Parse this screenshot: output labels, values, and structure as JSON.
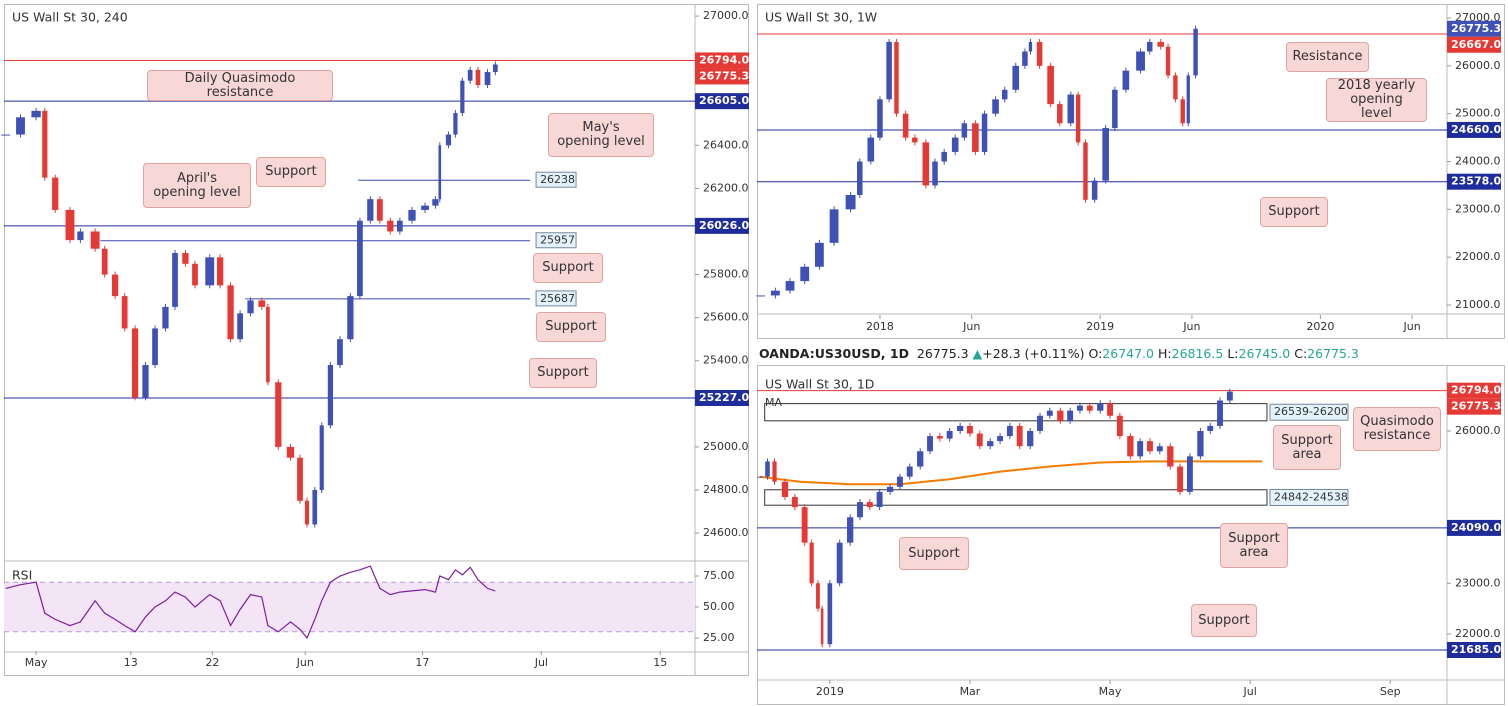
{
  "header": {
    "symbol": "OANDA:US30USD, 1D",
    "last": "26775.3",
    "arrow": "▲",
    "change": "+28.3",
    "change_pct": "(+0.11%)",
    "ohlc": [
      {
        "label": "O:",
        "value": "26747.0"
      },
      {
        "label": "H:",
        "value": "26816.5"
      },
      {
        "label": "L:",
        "value": "26745.0"
      },
      {
        "label": "C:",
        "value": "26775.3"
      }
    ]
  },
  "chart_data": [
    {
      "type": "candlestick",
      "title": "US Wall St 30, 240",
      "up_color": "#3f51b5",
      "down_color": "#e53935",
      "x": [
        -3.5,
        -1.8,
        0,
        1.0,
        2.2,
        3.9,
        5.1,
        6.8,
        7.9,
        9.1,
        10.2,
        11.4,
        12.6,
        13.7,
        14.9,
        16.0,
        17.2,
        18.3,
        20.0,
        21.2,
        22.4,
        23.5,
        24.7,
        26.0,
        26.7,
        27.9,
        29.3,
        30.4,
        31.2,
        32.1,
        32.9,
        33.9,
        35.0,
        36.2,
        37.3,
        38.5,
        39.6,
        40.8,
        41.9,
        43.3,
        44.8,
        46.0,
        46.5,
        47.5,
        48.3,
        49.1,
        50.0,
        50.9,
        52.0,
        52.9
      ],
      "values": [
        26450,
        26530,
        26560,
        26250,
        26100,
        25960,
        26000,
        25920,
        25800,
        25700,
        25550,
        25230,
        25380,
        25550,
        25650,
        25900,
        25850,
        25750,
        25880,
        25750,
        25500,
        25620,
        25680,
        25650,
        25300,
        25000,
        24950,
        24750,
        24640,
        24800,
        25100,
        25380,
        25500,
        25700,
        26050,
        26150,
        26050,
        26000,
        26050,
        26100,
        26120,
        26150,
        26400,
        26450,
        26550,
        26700,
        26750,
        26680,
        26740,
        26775.3
      ],
      "xlim": [
        -3.7,
        75.9
      ],
      "ylim": [
        24475,
        27056
      ],
      "xticks": [
        {
          "value": 0,
          "label": "May"
        },
        {
          "value": 10.9,
          "label": "13"
        },
        {
          "value": 20.3,
          "label": "22"
        },
        {
          "value": 31,
          "label": "Jun"
        },
        {
          "value": 44.5,
          "label": "17"
        },
        {
          "value": 58.2,
          "label": "Jul"
        },
        {
          "value": 71.9,
          "label": "15"
        }
      ],
      "yticks": [
        {
          "value": 27000,
          "label": "27000.0"
        },
        {
          "value": 26400,
          "label": "26400.0"
        },
        {
          "value": 26200,
          "label": "26200.0"
        },
        {
          "value": 25800,
          "label": "25800.0"
        },
        {
          "value": 25600,
          "label": "25600.0"
        },
        {
          "value": 25400,
          "label": "25400.0"
        },
        {
          "value": 25000,
          "label": "25000.0"
        },
        {
          "value": 24800,
          "label": "24800.0"
        },
        {
          "value": 24600,
          "label": "24600.0"
        }
      ],
      "levels": [
        {
          "value": 26794,
          "label": "26794.0",
          "color": "#e53935"
        },
        {
          "value": 26605,
          "label": "26605.0",
          "color": "#1f2d9c"
        },
        {
          "value": 26026,
          "label": "26026.0",
          "color": "#1f2d9c"
        },
        {
          "value": 25227,
          "label": "25227.0",
          "color": "#1f2d9c"
        }
      ],
      "last": {
        "value": 26775.3,
        "label": "26775.3",
        "color": "#e53935"
      },
      "segments": [
        {
          "value": 26238,
          "label": "26238",
          "start": 37.1,
          "end": 56.9
        },
        {
          "value": 25957,
          "label": "25957",
          "start": 7.4,
          "end": 56.9
        },
        {
          "value": 25687,
          "label": "25687",
          "start": 24.1,
          "end": 56.9
        }
      ],
      "annotations": [
        "Daily Quasimodo resistance",
        "May's opening level",
        "Support",
        "April's opening level",
        "Support",
        "Support",
        "Support"
      ]
    },
    {
      "type": "line",
      "title": "RSI",
      "color": "#7b1fa2",
      "band": [
        30,
        70
      ],
      "x": [
        -3.5,
        -1.8,
        0,
        1.0,
        2.2,
        3.9,
        5.1,
        6.8,
        7.9,
        9.1,
        10.2,
        11.4,
        12.6,
        13.7,
        14.9,
        16.0,
        17.2,
        18.3,
        20.0,
        21.2,
        22.4,
        23.5,
        24.7,
        26.0,
        26.7,
        27.9,
        29.3,
        30.4,
        31.2,
        32.1,
        32.9,
        33.9,
        35.0,
        36.2,
        37.3,
        38.5,
        39.6,
        40.8,
        41.9,
        43.3,
        44.8,
        46.0,
        46.5,
        47.5,
        48.3,
        49.1,
        50.0,
        50.9,
        52.0,
        52.9
      ],
      "values": [
        65,
        68,
        70,
        45,
        40,
        35,
        38,
        55,
        45,
        40,
        35,
        30,
        42,
        50,
        55,
        62,
        58,
        50,
        60,
        55,
        35,
        48,
        60,
        58,
        35,
        30,
        38,
        32,
        25,
        40,
        55,
        70,
        75,
        78,
        80,
        83,
        65,
        60,
        62,
        63,
        64,
        62,
        75,
        72,
        80,
        76,
        82,
        72,
        65,
        63
      ],
      "xlim": [
        -3.7,
        75.9
      ],
      "ylim": [
        13.7,
        86.3
      ],
      "yticks": [
        {
          "value": 75,
          "label": "75.00"
        },
        {
          "value": 50,
          "label": "50.00"
        },
        {
          "value": 25,
          "label": "25.00"
        }
      ]
    },
    {
      "type": "candlestick",
      "title": "US Wall St 30, 1W",
      "up_color": "#3f51b5",
      "down_color": "#e53935",
      "x": [
        -6.5,
        -5.7,
        -4.9,
        -4.1,
        -3.3,
        -2.5,
        -1.6,
        -1.1,
        -0.5,
        0,
        0.5,
        0.9,
        1.4,
        1.9,
        2.5,
        3.0,
        3.5,
        4.1,
        4.6,
        5.2,
        5.7,
        6.3,
        6.8,
        7.4,
        7.9,
        8.2,
        8.7,
        9.3,
        9.8,
        10.4,
        10.8,
        11.2,
        11.7,
        12.3,
        12.8,
        13.4,
        14.2,
        14.7,
        15.3,
        15.7,
        16.1,
        16.5,
        16.8,
        17.2
      ],
      "values": [
        21200,
        21300,
        21500,
        21800,
        22300,
        23000,
        23300,
        24000,
        24500,
        25300,
        26500,
        25000,
        24500,
        24400,
        23500,
        24000,
        24200,
        24500,
        24800,
        24200,
        25000,
        25300,
        25500,
        26000,
        26300,
        26500,
        26000,
        25200,
        24800,
        25400,
        24400,
        23200,
        23600,
        24700,
        25500,
        25900,
        26300,
        26500,
        26400,
        25800,
        25300,
        24800,
        25800,
        26775.3
      ],
      "xlim": [
        -6.7,
        30.9
      ],
      "ylim": [
        20812,
        27293
      ],
      "xticks": [
        {
          "value": 0,
          "label": "2018"
        },
        {
          "value": 5,
          "label": "Jun"
        },
        {
          "value": 12,
          "label": "2019"
        },
        {
          "value": 17,
          "label": "Jun"
        },
        {
          "value": 24,
          "label": "2020"
        },
        {
          "value": 29,
          "label": "Jun"
        }
      ],
      "yticks": [
        {
          "value": 27000,
          "label": "27000.0"
        },
        {
          "value": 26000,
          "label": "26000.0"
        },
        {
          "value": 25000,
          "label": "25000.0"
        },
        {
          "value": 24000,
          "label": "24000.0"
        },
        {
          "value": 23000,
          "label": "23000.0"
        },
        {
          "value": 22000,
          "label": "22000.0"
        },
        {
          "value": 21000,
          "label": "21000.0"
        }
      ],
      "levels": [
        {
          "value": 26667,
          "label": "26667.0",
          "color": "#e53935"
        },
        {
          "value": 24660,
          "label": "24660.0",
          "color": "#1f2d9c"
        },
        {
          "value": 23578,
          "label": "23578.0",
          "color": "#1f2d9c"
        }
      ],
      "last": {
        "value": 26775.3,
        "label": "26775.3",
        "color": "#3f51b5"
      },
      "annotations": [
        "Resistance",
        "2018 yearly opening level",
        "Support"
      ]
    },
    {
      "type": "candlestick",
      "title": "US Wall St 30, 1D",
      "up_color": "#3f51b5",
      "down_color": "#e53935",
      "x": [
        -1.0,
        -0.89,
        -0.79,
        -0.64,
        -0.5,
        -0.36,
        -0.26,
        -0.17,
        -0.11,
        0,
        0.14,
        0.29,
        0.43,
        0.57,
        0.71,
        0.86,
        1.0,
        1.14,
        1.29,
        1.43,
        1.57,
        1.71,
        1.86,
        2.0,
        2.14,
        2.29,
        2.43,
        2.57,
        2.71,
        2.86,
        3.0,
        3.14,
        3.29,
        3.43,
        3.57,
        3.71,
        3.86,
        4.0,
        4.14,
        4.29,
        4.43,
        4.57,
        4.71,
        4.86,
        5.0,
        5.14,
        5.29,
        5.43,
        5.57,
        5.71
      ],
      "values": [
        25100,
        25400,
        25000,
        24700,
        24500,
        23800,
        23000,
        22500,
        21800,
        23000,
        23800,
        24300,
        24600,
        24500,
        24800,
        24900,
        25100,
        25300,
        25600,
        25900,
        25850,
        26000,
        26100,
        25950,
        25700,
        25800,
        25900,
        26100,
        25700,
        26000,
        26300,
        26400,
        26200,
        26400,
        26500,
        26400,
        26550,
        26300,
        25900,
        25500,
        25800,
        25600,
        25700,
        25300,
        24800,
        25500,
        26000,
        26100,
        26600,
        26775.3
      ],
      "xlim": [
        -1.04,
        8.81
      ],
      "ylim": [
        21094,
        27300
      ],
      "xticks": [
        {
          "value": 0,
          "label": "2019"
        },
        {
          "value": 2,
          "label": "Mar"
        },
        {
          "value": 4,
          "label": "May"
        },
        {
          "value": 6,
          "label": "Jul"
        },
        {
          "value": 8,
          "label": "Sep"
        }
      ],
      "yticks": [
        {
          "value": 26000,
          "label": "26000.0"
        },
        {
          "value": 23000,
          "label": "23000.0"
        },
        {
          "value": 22000,
          "label": "22000.0"
        }
      ],
      "levels": [
        {
          "value": 26794,
          "label": "26794.0",
          "color": "#e53935"
        },
        {
          "value": 24090,
          "label": "24090.0",
          "color": "#1f2d9c"
        },
        {
          "value": 21685,
          "label": "21685.0",
          "color": "#1f2d9c"
        }
      ],
      "last": {
        "value": 26775.3,
        "label": "26775.3",
        "color": "#e53935"
      },
      "ma": {
        "name": "MA",
        "color": "#f57c00",
        "x": [
          -1.0,
          -0.43,
          0.29,
          1.0,
          1.71,
          2.43,
          3.14,
          3.86,
          4.57,
          5.29,
          6.17
        ],
        "values": [
          25100,
          25000,
          24950,
          24950,
          25050,
          25200,
          25300,
          25380,
          25400,
          25400,
          25400
        ]
      },
      "zones": [
        {
          "label": "26539-26200",
          "top": 26539,
          "bottom": 26200,
          "start": -0.93,
          "end": 6.24
        },
        {
          "label": "24842-24538",
          "top": 24842,
          "bottom": 24538,
          "start": -0.93,
          "end": 6.24
        }
      ],
      "annotations": [
        "Support area",
        "Quasimodo resistance",
        "Support area",
        "Support",
        "Support"
      ]
    }
  ]
}
